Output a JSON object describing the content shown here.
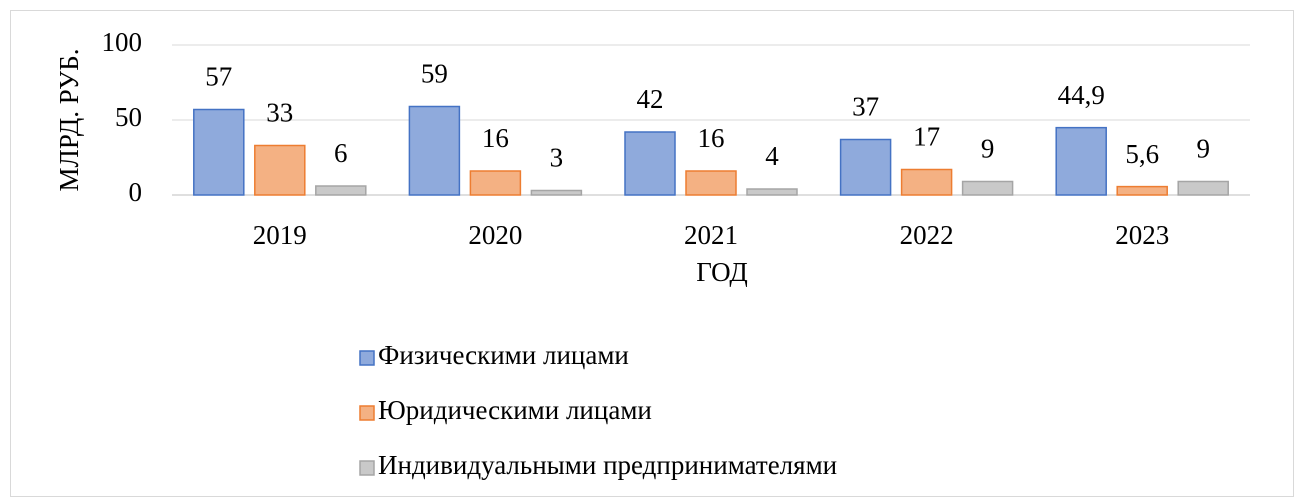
{
  "chart_data": {
    "type": "bar",
    "y_axis_label": "МЛРД. РУБ.",
    "x_axis_label": "ГОД",
    "categories": [
      "2019",
      "2020",
      "2021",
      "2022",
      "2023"
    ],
    "series": [
      {
        "name": "Физическими лицами",
        "color": "#8faadc",
        "values": [
          57,
          59,
          42,
          37,
          44.9
        ],
        "value_labels": [
          "57",
          "59",
          "42",
          "37",
          "44,9"
        ]
      },
      {
        "name": "Юридическими лицами",
        "color": "#f4b183",
        "values": [
          33,
          16,
          16,
          17,
          5.6
        ],
        "value_labels": [
          "33",
          "16",
          "16",
          "17",
          "5,6"
        ]
      },
      {
        "name": "Индивидуальными предпринимателями",
        "color": "#c9c9c9",
        "values": [
          6,
          3,
          4,
          9,
          9
        ],
        "value_labels": [
          "6",
          "3",
          "4",
          "9",
          "9"
        ]
      }
    ],
    "ylim": [
      0,
      100
    ],
    "yticks": [
      0,
      50,
      100
    ],
    "grid": true,
    "legend": "bottom"
  }
}
